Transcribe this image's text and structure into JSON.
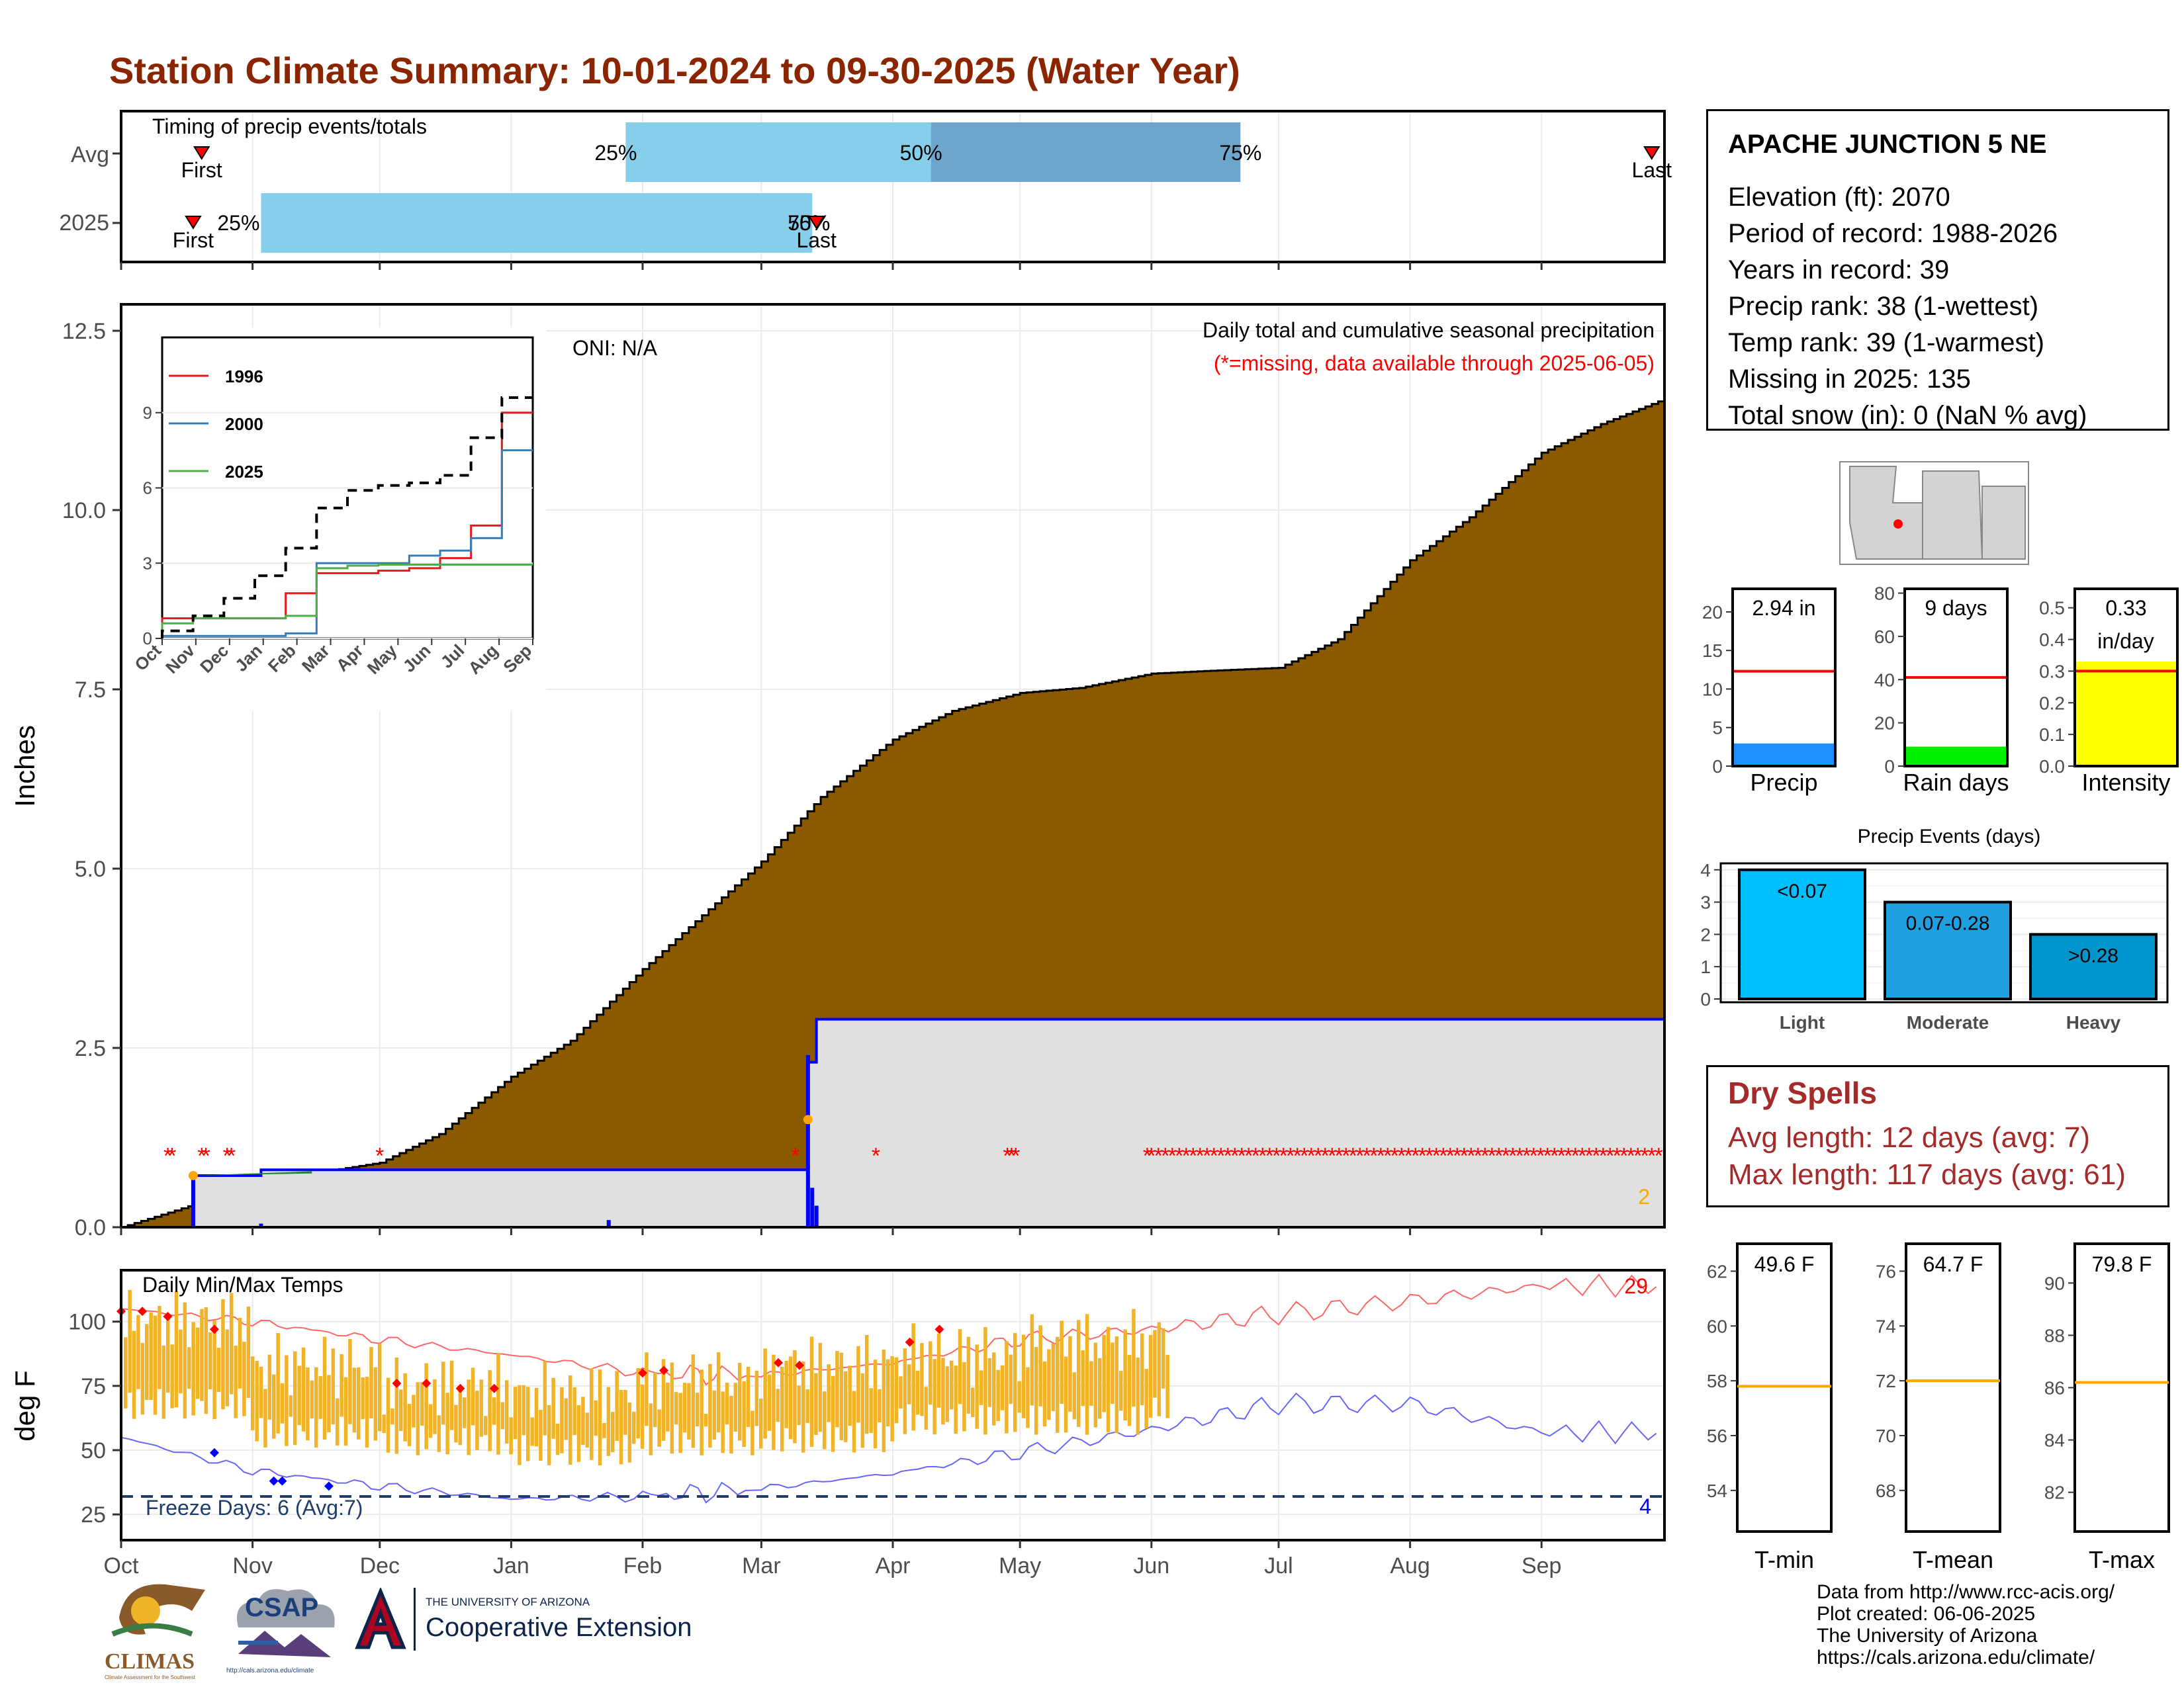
{
  "title": "Station Climate Summary: 10-01-2024 to 09-30-2025 (Water Year)",
  "colors": {
    "title": "#8b2500",
    "cum_precip": "#8b5a00",
    "year_fill": "#e0e0e0",
    "year_line": "#0000ff",
    "timing_light": "#87ceeb",
    "timing_dark": "#6ca6cd",
    "tmax_bar": "#f0b429",
    "missing": "#ff0000",
    "dry": "#a52a2a",
    "freeze_line": "#1f3d6b",
    "precip_bar": "#1e90ff",
    "rain_bar": "#00ee00",
    "int_bar": "#ffff00"
  },
  "timing_panel": {
    "title": "Timing of precip events/totals",
    "rows": [
      "Avg",
      "2025"
    ],
    "avg": {
      "first_label": "First",
      "last_label": "Last",
      "p25": "25%",
      "p50": "50%",
      "p75": "75%"
    },
    "y2025": {
      "first_label": "First",
      "last_label": "Last",
      "p25": "25%",
      "p50": "50%",
      "p75": "75%"
    }
  },
  "precip_panel": {
    "ylabel": "Inches",
    "yticks": [
      "0.0",
      "2.5",
      "5.0",
      "7.5",
      "10.0",
      "12.5"
    ],
    "oni": "ONI: N/A",
    "subtitle": "Daily total and cumulative seasonal precipitation",
    "missing_note": "(*=missing, data available through 2025-06-05)",
    "corner_count": "2"
  },
  "inset": {
    "legend": [
      "1996",
      "2000",
      "2025"
    ],
    "legend_colors": [
      "#e41a1c",
      "#377eb8",
      "#4daf4a"
    ],
    "yticks": [
      "0",
      "3",
      "6",
      "9"
    ],
    "xticks": [
      "Oct",
      "Nov",
      "Dec",
      "Jan",
      "Feb",
      "Mar",
      "Apr",
      "May",
      "Jun",
      "Jul",
      "Aug",
      "Sep"
    ]
  },
  "temp_panel": {
    "title": "Daily Min/Max Temps",
    "ylabel": "deg F",
    "yticks": [
      "25",
      "50",
      "75",
      "100"
    ],
    "freeze_label": "Freeze Days: 6 (Avg:7)",
    "hot_count": "29",
    "cold_count": "4"
  },
  "months": [
    "Oct",
    "Nov",
    "Dec",
    "Jan",
    "Feb",
    "Mar",
    "Apr",
    "May",
    "Jun",
    "Jul",
    "Aug",
    "Sep"
  ],
  "station": {
    "name": "APACHE JUNCTION 5 NE",
    "lines": [
      "Elevation (ft): 2070",
      "Period of record: 1988-2026",
      "Years in record: 39",
      "Precip rank: 38 (1-wettest)",
      "Temp rank: 39 (1-warmest)",
      "Missing in 2025: 135",
      "Total snow (in): 0 (NaN % avg)"
    ]
  },
  "mini_bars": {
    "precip": {
      "label": "Precip",
      "value_text": "2.94 in",
      "yticks": [
        "0",
        "5",
        "10",
        "15",
        "20"
      ]
    },
    "rain_days": {
      "label": "Rain days",
      "value_text": "9 days",
      "yticks": [
        "0",
        "20",
        "40",
        "60",
        "80"
      ]
    },
    "intensity": {
      "label": "Intensity",
      "value_text": "0.33",
      "value_unit": "in/day",
      "yticks": [
        "0.0",
        "0.1",
        "0.2",
        "0.3",
        "0.4",
        "0.5"
      ]
    }
  },
  "events": {
    "title": "Precip Events (days)",
    "yticks": [
      "0",
      "1",
      "2",
      "3",
      "4"
    ],
    "bars": [
      {
        "label": "Light",
        "range": "<0.07"
      },
      {
        "label": "Moderate",
        "range": "0.07-0.28"
      },
      {
        "label": "Heavy",
        "range": ">0.28"
      }
    ]
  },
  "dry_spells": {
    "title": "Dry Spells",
    "avg": "Avg length: 12 days (avg: 7)",
    "max": "Max length: 117 days (avg: 61)"
  },
  "temp_boxes": {
    "tmin": {
      "label": "T-min",
      "value_text": "49.6 F",
      "yticks": [
        "54",
        "56",
        "58",
        "60",
        "62"
      ]
    },
    "tmean": {
      "label": "T-mean",
      "value_text": "64.7 F",
      "yticks": [
        "68",
        "70",
        "72",
        "74",
        "76"
      ]
    },
    "tmax": {
      "label": "T-max",
      "value_text": "79.8 F",
      "yticks": [
        "82",
        "84",
        "86",
        "88",
        "90"
      ]
    }
  },
  "logos": {
    "climas": "CLIMAS",
    "climas_sub": "Climate Assessment for the Southwest",
    "csap": "CSAP",
    "csap_url": "http://cals.arizona.edu/climate",
    "ua_top": "THE UNIVERSITY OF ARIZONA",
    "ua_bottom": "Cooperative Extension"
  },
  "credits": [
    "Data from http://www.rcc-acis.org/",
    "Plot created: 06-06-2025",
    "The University of Arizona",
    "https://cals.arizona.edu/climate/"
  ],
  "chart_data": [
    {
      "type": "bar",
      "name": "timing",
      "rows": [
        "Avg",
        "2025"
      ],
      "series": [
        {
          "values": {
            "avg": {
              "first": "2024-10-20",
              "p25": "2025-01-28",
              "p50": "2025-04-10",
              "p75": "2025-06-22",
              "last": "2025-09-27"
            },
            "y2025": {
              "first": "2024-10-18",
              "p25": "2024-11-03",
              "p50": "2025-03-13",
              "p75": "2025-03-13",
              "last": "2025-03-14"
            }
          }
        }
      ]
    },
    {
      "type": "area",
      "name": "precip",
      "ylim": [
        0,
        12.5
      ],
      "x_range": [
        "2024-10-01",
        "2025-09-30"
      ],
      "series": [
        {
          "values": [
            [
              "2024-10-01",
              0.0
            ],
            [
              "2024-10-20",
              0.35
            ],
            [
              "2024-11-15",
              0.75
            ],
            [
              "2024-12-01",
              0.9
            ],
            [
              "2024-12-15",
              1.3
            ],
            [
              "2025-01-01",
              2.1
            ],
            [
              "2025-01-15",
              2.6
            ],
            [
              "2025-02-01",
              3.6
            ],
            [
              "2025-02-15",
              4.35
            ],
            [
              "2025-03-01",
              5.1
            ],
            [
              "2025-03-15",
              6.0
            ],
            [
              "2025-04-01",
              6.8
            ],
            [
              "2025-04-15",
              7.2
            ],
            [
              "2025-05-01",
              7.45
            ],
            [
              "2025-05-15",
              7.52
            ],
            [
              "2025-06-01",
              7.72
            ],
            [
              "2025-06-15",
              7.76
            ],
            [
              "2025-07-01",
              7.8
            ],
            [
              "2025-07-15",
              8.2
            ],
            [
              "2025-08-01",
              9.3
            ],
            [
              "2025-08-15",
              9.9
            ],
            [
              "2025-09-01",
              10.8
            ],
            [
              "2025-09-15",
              11.2
            ],
            [
              "2025-09-30",
              11.55
            ]
          ]
        },
        {
          "values": [
            [
              "2024-10-01",
              0.0
            ],
            [
              "2024-10-18",
              0.0
            ],
            [
              "2024-10-18",
              0.72
            ],
            [
              "2024-11-03",
              0.8
            ],
            [
              "2025-03-12",
              0.9
            ],
            [
              "2025-03-12",
              2.3
            ],
            [
              "2025-03-14",
              2.9
            ],
            [
              "2025-09-30",
              2.94
            ]
          ]
        }
      ],
      "missing_dates": [
        "2024-10-12",
        "2024-10-13",
        "2024-10-20",
        "2024-10-21",
        "2024-10-26",
        "2024-10-27",
        "2024-12-01",
        "2025-03-09",
        "2025-03-28",
        "2025-04-28",
        "2025-04-29",
        "2025-04-30",
        "2025-05-31",
        "2025-06-01 to 2025-09-30"
      ]
    },
    {
      "type": "line",
      "name": "inset",
      "ylim": [
        0,
        12
      ],
      "series": [
        {
          "name": "1996",
          "values": [
            0.8,
            0.8,
            0.8,
            0.8,
            1.8,
            2.6,
            2.6,
            2.7,
            2.8,
            3.2,
            4.5,
            9.0
          ]
        },
        {
          "name": "2000",
          "values": [
            0.1,
            0.1,
            0.1,
            0.1,
            0.2,
            3.0,
            3.0,
            3.0,
            3.3,
            3.5,
            4.0,
            7.5
          ]
        },
        {
          "name": "2025",
          "values": [
            0.6,
            0.8,
            0.8,
            0.8,
            0.9,
            2.8,
            2.9,
            2.94,
            2.94,
            2.94,
            2.94,
            2.94
          ]
        },
        {
          "name": "",
          "values": [
            0.3,
            0.9,
            1.6,
            2.5,
            3.6,
            5.2,
            5.9,
            6.1,
            6.2,
            6.5,
            8.0,
            9.6
          ]
        }
      ]
    },
    {
      "type": "bar",
      "name": "temps",
      "ylim": [
        15,
        120
      ],
      "series": [
        {
          "name": "",
          "values": [
            105,
            100,
            93,
            87,
            80,
            79,
            84,
            93,
            97,
            103,
            108,
            114
          ]
        },
        {
          "name": "",
          "values": [
            55,
            42,
            36,
            31,
            32,
            35,
            41,
            49,
            58,
            68,
            68,
            57
          ]
        },
        {
          "name": "",
          "values": [
            [
              100,
              68
            ],
            [
              83,
              57
            ],
            [
              75,
              54
            ],
            [
              72,
              50
            ],
            [
              77,
              54
            ],
            [
              83,
              55
            ],
            [
              87,
              62
            ],
            [
              92,
              62
            ],
            [
              95,
              68
            ]
          ]
        }
      ],
      "freeze_line": 32
    },
    {
      "type": "bar",
      "name": "mini",
      "series": [
        {
          "name": "Precip",
          "values": [
            2.94
          ],
          "avg": 12.3,
          "ylim": [
            0,
            23
          ]
        },
        {
          "name": "Rain days",
          "values": [
            9
          ],
          "avg": 41,
          "ylim": [
            0,
            82
          ]
        },
        {
          "name": "Intensity",
          "values": [
            0.33
          ],
          "avg": 0.3,
          "ylim": [
            0,
            0.56
          ]
        }
      ]
    },
    {
      "type": "bar",
      "name": "events",
      "categories": [
        "Light",
        "Moderate",
        "Heavy"
      ],
      "values": [
        4,
        3,
        2
      ],
      "ylim": [
        0,
        4.2
      ]
    },
    {
      "type": "bar",
      "name": "temp_boxes",
      "series": [
        {
          "name": "T-min",
          "avg": 57.8,
          "ylim": [
            52.5,
            63
          ]
        },
        {
          "name": "T-mean",
          "avg": 72.0,
          "ylim": [
            66.5,
            77
          ]
        },
        {
          "name": "T-max",
          "avg": 86.2,
          "ylim": [
            80.5,
            91.5
          ]
        }
      ]
    }
  ]
}
